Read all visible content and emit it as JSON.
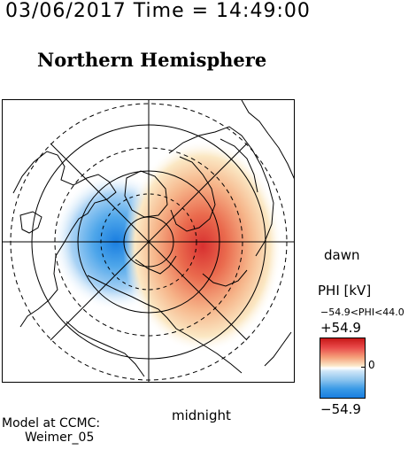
{
  "header": {
    "timestamp": "03/06/2017 Time = 14:49:00",
    "title": "Northern Hemisphere"
  },
  "map": {
    "projection": "polar",
    "labels": {
      "dawn": "dawn",
      "midnight": "midnight"
    },
    "potential_pattern": [
      {
        "sign": "negative",
        "region": "dusk side",
        "color": "#1a7ee0"
      },
      {
        "sign": "positive",
        "region": "dawn side",
        "color": "#d83030"
      }
    ]
  },
  "colorbar": {
    "title": "PHI [kV]",
    "range_text": "−54.9<PHI<44.0",
    "max_label": "+54.9",
    "min_label": "−54.9",
    "zero_label": "0",
    "colors": {
      "max": "#c81818",
      "zero": "#ffffff",
      "min": "#1a7ee0"
    }
  },
  "footer": {
    "model_line1": "Model at CCMC:",
    "model_line2": "Weimer_05"
  }
}
